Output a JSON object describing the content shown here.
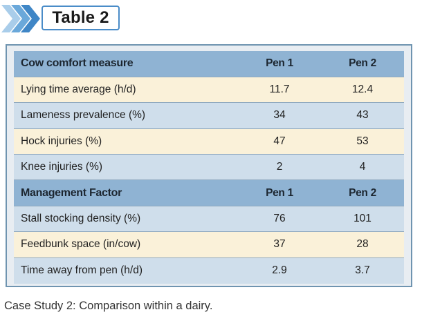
{
  "title": "Table 2",
  "table": {
    "sections": [
      {
        "header": [
          "Cow comfort measure",
          "Pen 1",
          "Pen 2"
        ],
        "rows": [
          [
            "Lying time average (h/d)",
            "11.7",
            "12.4"
          ],
          [
            "Lameness prevalence (%)",
            "34",
            "43"
          ],
          [
            "Hock injuries (%)",
            "47",
            "53"
          ],
          [
            "Knee injuries (%)",
            "2",
            "4"
          ]
        ]
      },
      {
        "header": [
          "Management Factor",
          "Pen 1",
          "Pen 2"
        ],
        "rows": [
          [
            "Stall stocking density (%)",
            "76",
            "101"
          ],
          [
            "Feedbunk space (in/cow)",
            "37",
            "28"
          ],
          [
            "Time away from pen (h/d)",
            "2.9",
            "3.7"
          ]
        ]
      }
    ]
  },
  "caption": "Case Study 2: Comparison within a dairy.",
  "colors": {
    "header_row": "#8fb3d3",
    "row_cream": "#faf1d9",
    "row_blue": "#cfdeeb",
    "chevron_light": "#a9cdea",
    "chevron_dark": "#3f86c6",
    "title_border": "#4a8cc8"
  }
}
